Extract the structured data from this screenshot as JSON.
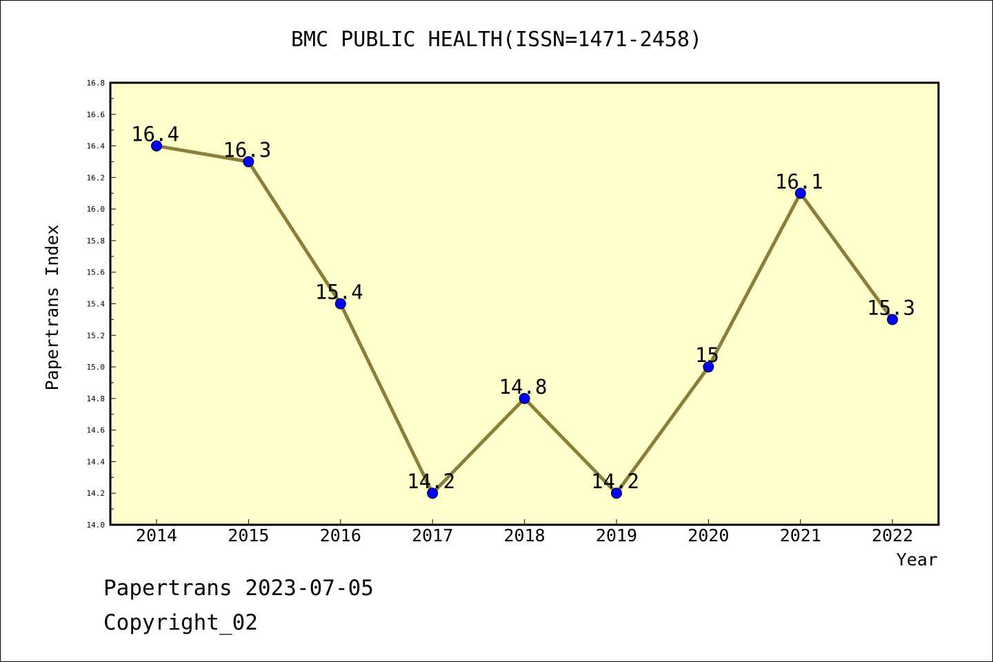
{
  "chart_data": {
    "type": "line",
    "title": "BMC PUBLIC HEALTH(ISSN=1471-2458)",
    "xlabel": "Year",
    "ylabel": "Papertrans Index",
    "categories": [
      "2014",
      "2015",
      "2016",
      "2017",
      "2018",
      "2019",
      "2020",
      "2021",
      "2022"
    ],
    "values": [
      16.4,
      16.3,
      15.4,
      14.2,
      14.8,
      14.2,
      15.0,
      16.1,
      15.3
    ],
    "data_labels": [
      "16.4",
      "16.3",
      "15.4",
      "14.2",
      "14.8",
      "14.2",
      "15",
      "16.1",
      "15.3"
    ],
    "ylim": [
      14.0,
      16.8
    ],
    "yticks": [
      "14.0",
      "14.2",
      "14.4",
      "14.6",
      "14.8",
      "15.0",
      "15.2",
      "15.4",
      "15.6",
      "15.8",
      "16.0",
      "16.2",
      "16.4",
      "16.6",
      "16.8"
    ],
    "grid": false,
    "colors": {
      "plot_background": "#ffffcc",
      "line": "#8b7d3a",
      "marker": "#0000ff"
    }
  },
  "footer": {
    "line1": "Papertrans 2023-07-05",
    "line2": "Copyright_02"
  }
}
